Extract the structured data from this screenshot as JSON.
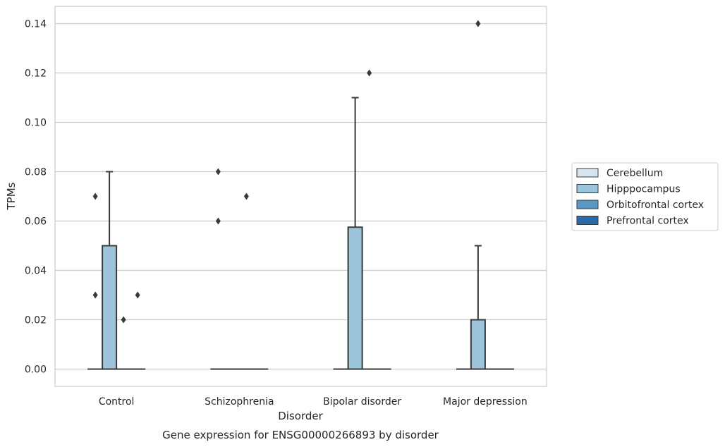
{
  "chart_data": {
    "type": "box",
    "caption": "Gene expression for ENSG00000266893 by disorder",
    "xlabel": "Disorder",
    "ylabel": "TPMs",
    "categories": [
      "Control",
      "Schizophrenia",
      "Bipolar disorder",
      "Major depression"
    ],
    "ylim": [
      -0.007,
      0.147
    ],
    "yticks": [
      "0.00",
      "0.02",
      "0.04",
      "0.06",
      "0.08",
      "0.10",
      "0.12",
      "0.14"
    ],
    "grid": "horizontal",
    "legend_position": "right",
    "series": [
      {
        "name": "Cerebellum",
        "color": "#d6e4f0",
        "boxes": [
          {
            "q1": 0,
            "median": 0,
            "q3": 0,
            "whisker_low": 0,
            "whisker_high": 0,
            "outliers": [
              0.07,
              0.03
            ]
          },
          {
            "q1": 0,
            "median": 0,
            "q3": 0,
            "whisker_low": 0,
            "whisker_high": 0,
            "outliers": [
              0.08,
              0.06
            ]
          },
          {
            "q1": 0,
            "median": 0,
            "q3": 0,
            "whisker_low": 0,
            "whisker_high": 0,
            "outliers": []
          },
          {
            "q1": 0,
            "median": 0,
            "q3": 0,
            "whisker_low": 0,
            "whisker_high": 0,
            "outliers": []
          }
        ]
      },
      {
        "name": "Hipppocampus",
        "color": "#9cc4da",
        "boxes": [
          {
            "q1": 0,
            "median": 0,
            "q3": 0.05,
            "whisker_low": 0,
            "whisker_high": 0.08,
            "outliers": []
          },
          {
            "q1": 0,
            "median": 0,
            "q3": 0,
            "whisker_low": 0,
            "whisker_high": 0,
            "outliers": []
          },
          {
            "q1": 0,
            "median": 0,
            "q3": 0.0575,
            "whisker_low": 0,
            "whisker_high": 0.11,
            "outliers": []
          },
          {
            "q1": 0,
            "median": 0,
            "q3": 0.02,
            "whisker_low": 0,
            "whisker_high": 0.05,
            "outliers": [
              0.14
            ]
          }
        ]
      },
      {
        "name": "Orbitofrontal cortex",
        "color": "#5a97c3",
        "boxes": [
          {
            "q1": 0,
            "median": 0,
            "q3": 0,
            "whisker_low": 0,
            "whisker_high": 0,
            "outliers": [
              0.02
            ]
          },
          {
            "q1": 0,
            "median": 0,
            "q3": 0,
            "whisker_low": 0,
            "whisker_high": 0,
            "outliers": [
              0.07
            ]
          },
          {
            "q1": 0,
            "median": 0,
            "q3": 0,
            "whisker_low": 0,
            "whisker_high": 0,
            "outliers": [
              0.12
            ]
          },
          {
            "q1": 0,
            "median": 0,
            "q3": 0,
            "whisker_low": 0,
            "whisker_high": 0,
            "outliers": []
          }
        ]
      },
      {
        "name": "Prefrontal cortex",
        "color": "#2b6aa8",
        "boxes": [
          {
            "q1": 0,
            "median": 0,
            "q3": 0,
            "whisker_low": 0,
            "whisker_high": 0,
            "outliers": [
              0.03
            ]
          },
          {
            "q1": 0,
            "median": 0,
            "q3": 0,
            "whisker_low": 0,
            "whisker_high": 0,
            "outliers": []
          },
          {
            "q1": 0,
            "median": 0,
            "q3": 0,
            "whisker_low": 0,
            "whisker_high": 0,
            "outliers": []
          },
          {
            "q1": 0,
            "median": 0,
            "q3": 0,
            "whisker_low": 0,
            "whisker_high": 0,
            "outliers": []
          }
        ]
      }
    ]
  }
}
